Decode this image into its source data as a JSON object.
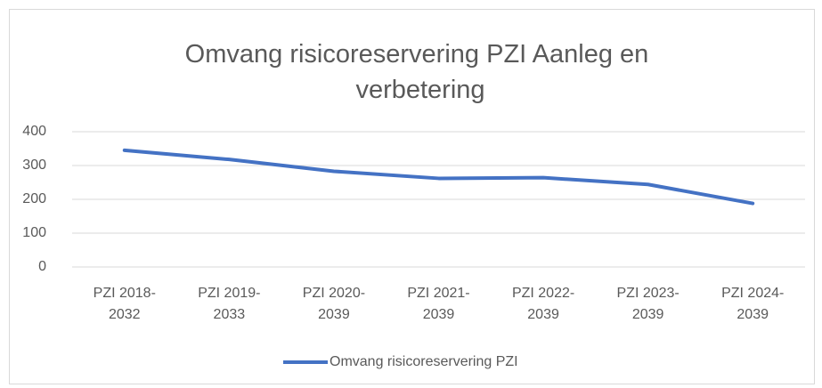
{
  "chart_data": {
    "type": "line",
    "title": "Omvang risicoreservering PZI Aanleg en verbetering",
    "categories": [
      "PZI 2018-2032",
      "PZI 2019-2033",
      "PZI 2020-2039",
      "PZI 2021-2039",
      "PZI 2022-2039",
      "PZI 2023-2039",
      "PZI 2024-2039"
    ],
    "series": [
      {
        "name": "Omvang risicoreservering PZI",
        "color": "#4472c4",
        "values": [
          345,
          318,
          283,
          262,
          264,
          244,
          188
        ]
      }
    ],
    "ylim": [
      0,
      400
    ],
    "yticks": [
      0,
      100,
      200,
      300,
      400
    ],
    "grid": true,
    "legend": "bottom"
  }
}
